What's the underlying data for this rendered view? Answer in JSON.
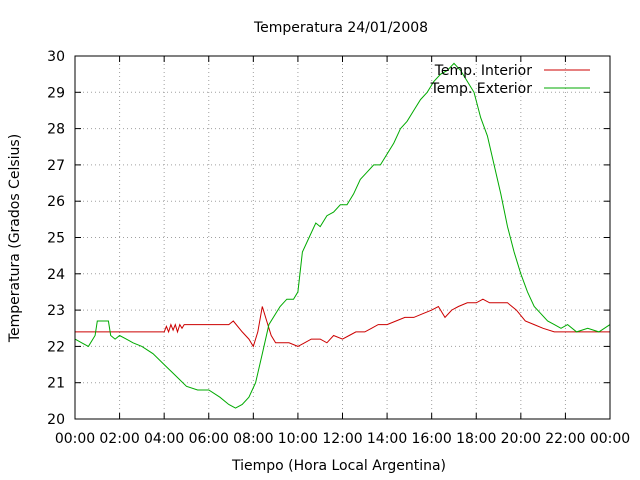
{
  "chart_data": {
    "type": "line",
    "title": "Temperatura 24/01/2008",
    "xlabel": "Tiempo (Hora Local Argentina)",
    "ylabel": "Temperatura (Grados Celsius)",
    "xlim": [
      0,
      24
    ],
    "ylim": [
      20,
      30
    ],
    "x_ticks": [
      0,
      2,
      4,
      6,
      8,
      10,
      12,
      14,
      16,
      18,
      20,
      22,
      24
    ],
    "x_tick_labels": [
      "00:00",
      "02:00",
      "04:00",
      "06:00",
      "08:00",
      "10:00",
      "12:00",
      "14:00",
      "16:00",
      "18:00",
      "20:00",
      "22:00",
      "00:00"
    ],
    "y_ticks": [
      20,
      21,
      22,
      23,
      24,
      25,
      26,
      27,
      28,
      29,
      30
    ],
    "y_tick_labels": [
      "20",
      "21",
      "22",
      "23",
      "24",
      "25",
      "26",
      "27",
      "28",
      "29",
      "30"
    ],
    "grid": true,
    "legend": "top-right",
    "series": [
      {
        "name": "Temp. Interior",
        "color": "#cc0000",
        "x": [
          0,
          4.0,
          4.1,
          4.2,
          4.3,
          4.4,
          4.5,
          4.6,
          4.7,
          4.8,
          4.9,
          5.0,
          6.9,
          7.1,
          7.5,
          7.8,
          8.0,
          8.2,
          8.4,
          8.6,
          8.8,
          9.0,
          9.3,
          9.6,
          10.0,
          10.3,
          10.6,
          11.0,
          11.3,
          11.6,
          12.0,
          12.3,
          12.6,
          13.0,
          13.3,
          13.6,
          14.0,
          14.4,
          14.8,
          15.2,
          15.6,
          16.0,
          16.3,
          16.6,
          16.9,
          17.2,
          17.6,
          18.0,
          18.3,
          18.6,
          19.0,
          19.4,
          19.8,
          20.2,
          20.6,
          21.0,
          21.5,
          22.0,
          23.0,
          24.0
        ],
        "y": [
          22.4,
          22.4,
          22.55,
          22.4,
          22.6,
          22.45,
          22.6,
          22.4,
          22.6,
          22.5,
          22.6,
          22.6,
          22.6,
          22.7,
          22.4,
          22.2,
          22.0,
          22.4,
          23.1,
          22.7,
          22.3,
          22.1,
          22.1,
          22.1,
          22.0,
          22.1,
          22.2,
          22.2,
          22.1,
          22.3,
          22.2,
          22.3,
          22.4,
          22.4,
          22.5,
          22.6,
          22.6,
          22.7,
          22.8,
          22.8,
          22.9,
          23.0,
          23.1,
          22.8,
          23.0,
          23.1,
          23.2,
          23.2,
          23.3,
          23.2,
          23.2,
          23.2,
          23.0,
          22.7,
          22.6,
          22.5,
          22.4,
          22.4,
          22.4,
          22.4
        ],
        "label": ""
      },
      {
        "name": "Temp. Exterior",
        "color": "#00aa00",
        "x": [
          0,
          0.3,
          0.6,
          0.9,
          1.0,
          1.5,
          1.6,
          1.8,
          2.0,
          2.3,
          2.6,
          3.0,
          3.5,
          4.0,
          4.5,
          5.0,
          5.5,
          6.0,
          6.5,
          6.9,
          7.2,
          7.5,
          7.8,
          8.1,
          8.4,
          8.7,
          9.0,
          9.2,
          9.5,
          9.8,
          10.0,
          10.2,
          10.5,
          10.8,
          11.0,
          11.3,
          11.6,
          11.9,
          12.2,
          12.5,
          12.8,
          13.1,
          13.4,
          13.7,
          14.0,
          14.3,
          14.6,
          14.9,
          15.2,
          15.5,
          15.8,
          16.1,
          16.4,
          16.7,
          17.0,
          17.3,
          17.6,
          17.9,
          18.2,
          18.5,
          18.8,
          19.1,
          19.4,
          19.7,
          20.0,
          20.3,
          20.6,
          20.9,
          21.2,
          21.5,
          21.8,
          22.1,
          22.5,
          23.0,
          23.5,
          24.0
        ],
        "y": [
          22.2,
          22.1,
          22.0,
          22.3,
          22.7,
          22.7,
          22.3,
          22.2,
          22.3,
          22.2,
          22.1,
          22.0,
          21.8,
          21.5,
          21.2,
          20.9,
          20.8,
          20.8,
          20.6,
          20.4,
          20.3,
          20.4,
          20.6,
          21.0,
          21.8,
          22.6,
          22.9,
          23.1,
          23.3,
          23.3,
          23.5,
          24.6,
          25.0,
          25.4,
          25.3,
          25.6,
          25.7,
          25.9,
          25.9,
          26.2,
          26.6,
          26.8,
          27.0,
          27.0,
          27.3,
          27.6,
          28.0,
          28.2,
          28.5,
          28.8,
          29.0,
          29.3,
          29.5,
          29.6,
          29.8,
          29.6,
          29.3,
          29.0,
          28.3,
          27.8,
          27.0,
          26.2,
          25.3,
          24.6,
          24.0,
          23.5,
          23.1,
          22.9,
          22.7,
          22.6,
          22.5,
          22.6,
          22.4,
          22.5,
          22.4,
          22.6
        ],
        "label": ""
      }
    ]
  }
}
